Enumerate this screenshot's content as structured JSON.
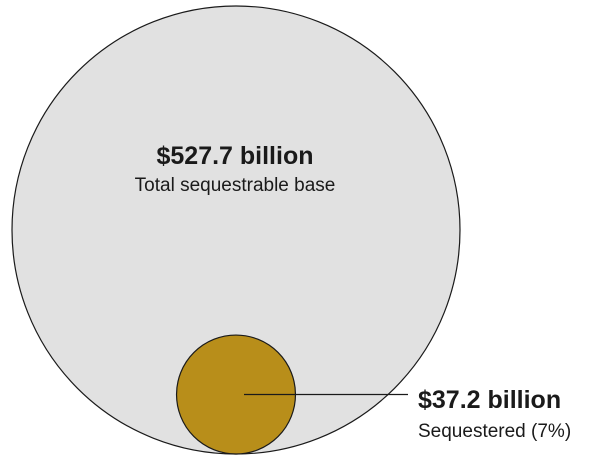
{
  "chart_data": {
    "type": "bubble",
    "unit": "billion",
    "series": [
      {
        "value": 527.7,
        "value_label": "$527.7 billion",
        "description": "Total sequestrable base",
        "color": "#e1e1e1"
      },
      {
        "value": 37.2,
        "value_label": "$37.2 billion",
        "description": "Sequestered (7%)",
        "color": "#b88e1a"
      }
    ],
    "outline_color": "#1a1a1a"
  }
}
